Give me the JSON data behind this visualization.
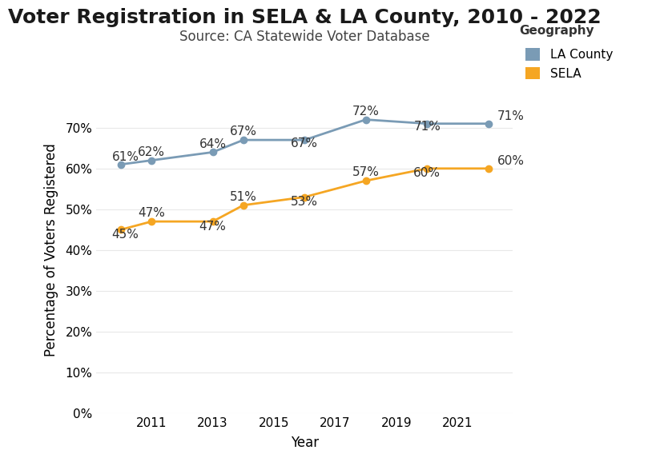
{
  "title": "Voter Registration in SELA & LA County, 2010 - 2022",
  "subtitle": "Source: CA Statewide Voter Database",
  "xlabel": "Year",
  "ylabel": "Percentage of Voters Registered",
  "la_county": {
    "years": [
      2010,
      2011,
      2013,
      2014,
      2016,
      2018,
      2020,
      2022
    ],
    "values": [
      0.61,
      0.62,
      0.64,
      0.67,
      0.67,
      0.72,
      0.71,
      0.71
    ],
    "labels": [
      "61%",
      "62%",
      "64%",
      "67%",
      "67%",
      "72%",
      "71%",
      "71%"
    ],
    "color": "#7a9bb5",
    "label": "LA County"
  },
  "sela": {
    "years": [
      2010,
      2011,
      2013,
      2014,
      2016,
      2018,
      2020,
      2022
    ],
    "values": [
      0.45,
      0.47,
      0.47,
      0.51,
      0.53,
      0.57,
      0.6,
      0.6
    ],
    "labels": [
      "45%",
      "47%",
      "47%",
      "51%",
      "53%",
      "57%",
      "60%",
      "60%"
    ],
    "color": "#f5a623",
    "label": "SELA"
  },
  "ylim": [
    0,
    0.8
  ],
  "yticks": [
    0.0,
    0.1,
    0.2,
    0.3,
    0.4,
    0.5,
    0.6,
    0.7
  ],
  "xticks": [
    2011,
    2013,
    2015,
    2017,
    2019,
    2021
  ],
  "xlim_left": 2009.2,
  "xlim_right": 2022.8,
  "legend_title": "Geography",
  "bg_color": "#ffffff",
  "grid_color": "#e8e8e8",
  "title_fontsize": 18,
  "subtitle_fontsize": 12,
  "axis_label_fontsize": 12,
  "tick_fontsize": 11,
  "annotation_fontsize": 11,
  "line_width": 2.0,
  "marker_size": 6
}
